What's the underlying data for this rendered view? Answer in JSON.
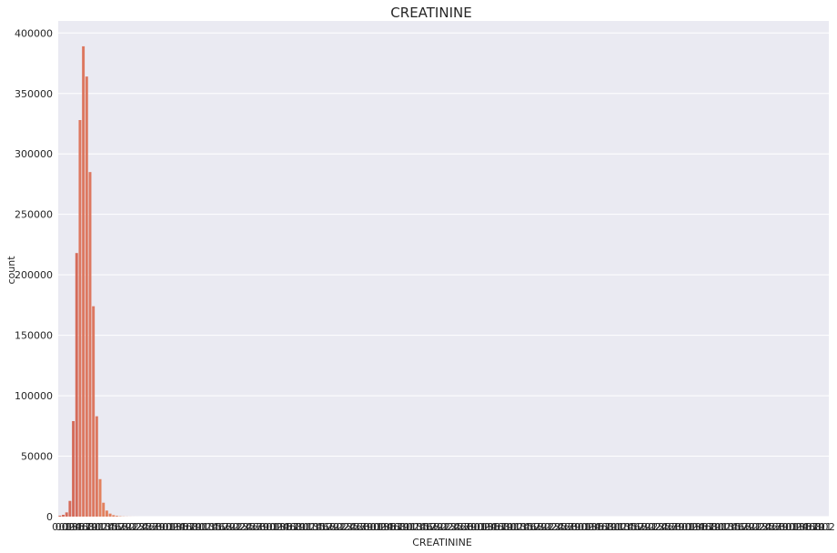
{
  "chart_data": {
    "type": "bar",
    "title": "CREATININE",
    "xlabel": "CREATININE",
    "ylabel": "count",
    "ylim": [
      0,
      410000
    ],
    "yticks": [
      0,
      50000,
      100000,
      150000,
      200000,
      250000,
      300000,
      350000,
      400000
    ],
    "grid": true,
    "legend": "none",
    "colors": {
      "background": "#eaeaf2",
      "grid": "#ffffff",
      "text": "#262626",
      "bar_palette": [
        "#d56b5a",
        "#dd7860",
        "#e2815e",
        "#e88b5f",
        "#ec955f"
      ]
    },
    "category_count": 230,
    "x_tick_labels": [
      "0.0",
      "0.1",
      "0.2",
      "0.3",
      "0.4",
      "0.5",
      "0.6",
      "0.7",
      "0.8",
      "0.9",
      "1.0",
      "1.1",
      "1.2",
      "1.3",
      "1.4",
      "1.5",
      "1.6",
      "1.7",
      "1.8",
      "1.9",
      "2.0",
      "2.1",
      "2.2",
      "2.3",
      "2.4",
      "2.5",
      "2.6",
      "2.7",
      "2.8",
      "2.9",
      "3.0"
    ],
    "values": [
      800,
      1500,
      3500,
      13000,
      79000,
      218000,
      328000,
      389000,
      364000,
      285000,
      174000,
      83000,
      31000,
      11500,
      5000,
      2500,
      1200,
      600,
      300,
      150,
      80,
      40,
      20,
      10
    ]
  }
}
